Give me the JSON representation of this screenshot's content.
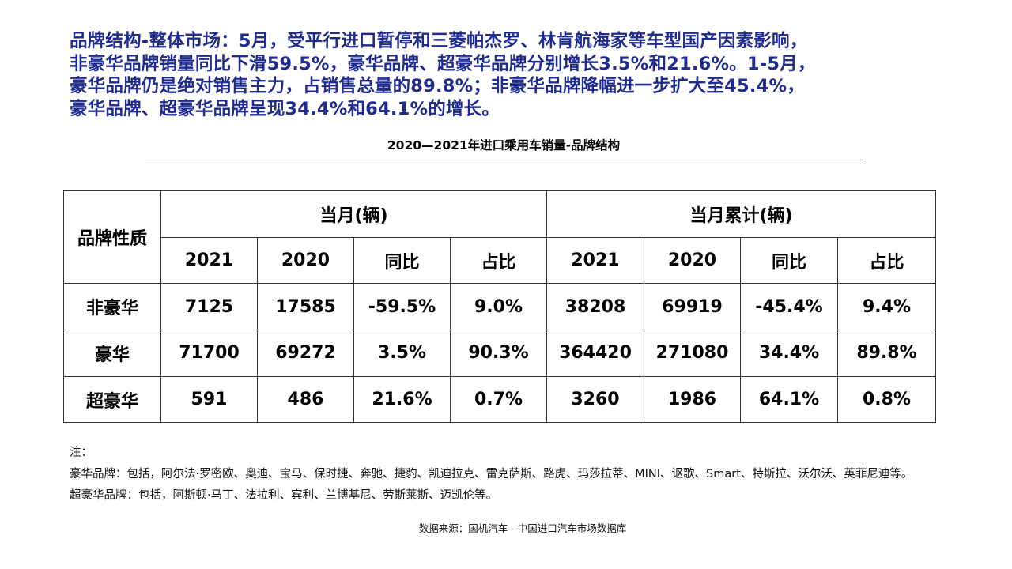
{
  "headline": {
    "lines": [
      "品牌结构-整体市场：5月，受平行进口暂停和三菱帕杰罗、林肯航海家等车型国产因素影响，",
      "非豪华品牌销量同比下滑59.5%，豪华品牌、超豪华品牌分别增长3.5%和21.6%。1-5月，",
      "豪华品牌仍是绝对销售主力，占销售总量的89.8%；非豪华品牌降幅进一步扩大至45.4%，",
      "豪华品牌、超豪华品牌呈现34.4%和64.1%的增长。"
    ]
  },
  "table_title": "2020—2021年进口乘用车销量-品牌结构",
  "table": {
    "row_header": "品牌性质",
    "group_month": "当月(辆)",
    "group_cumulative": "当月累计(辆)",
    "sub_headers": [
      "2021",
      "2020",
      "同比",
      "占比",
      "2021",
      "2020",
      "同比",
      "占比"
    ],
    "rows": [
      {
        "label": "非豪华",
        "cells": [
          "7125",
          "17585",
          "-59.5%",
          "9.0%",
          "38208",
          "69919",
          "-45.4%",
          "9.4%"
        ]
      },
      {
        "label": "豪华",
        "cells": [
          "71700",
          "69272",
          "3.5%",
          "90.3%",
          "364420",
          "271080",
          "34.4%",
          "89.8%"
        ]
      },
      {
        "label": "超豪华",
        "cells": [
          "591",
          "486",
          "21.6%",
          "0.7%",
          "3260",
          "1986",
          "64.1%",
          "0.8%"
        ]
      }
    ]
  },
  "notes": {
    "heading": "注：",
    "luxury": "豪华品牌：包括，阿尔法·罗密欧、奥迪、宝马、保时捷、奔驰、捷豹、凯迪拉克、雷克萨斯、路虎、玛莎拉蒂、MINI、讴歌、Smart、特斯拉、沃尔沃、英菲尼迪等。",
    "super_luxury": "超豪华品牌：包括，阿斯顿·马丁、法拉利、宾利、兰博基尼、劳斯莱斯、迈凯伦等。"
  },
  "source": "数据来源：国机汽车—中国进口汽车市场数据库"
}
